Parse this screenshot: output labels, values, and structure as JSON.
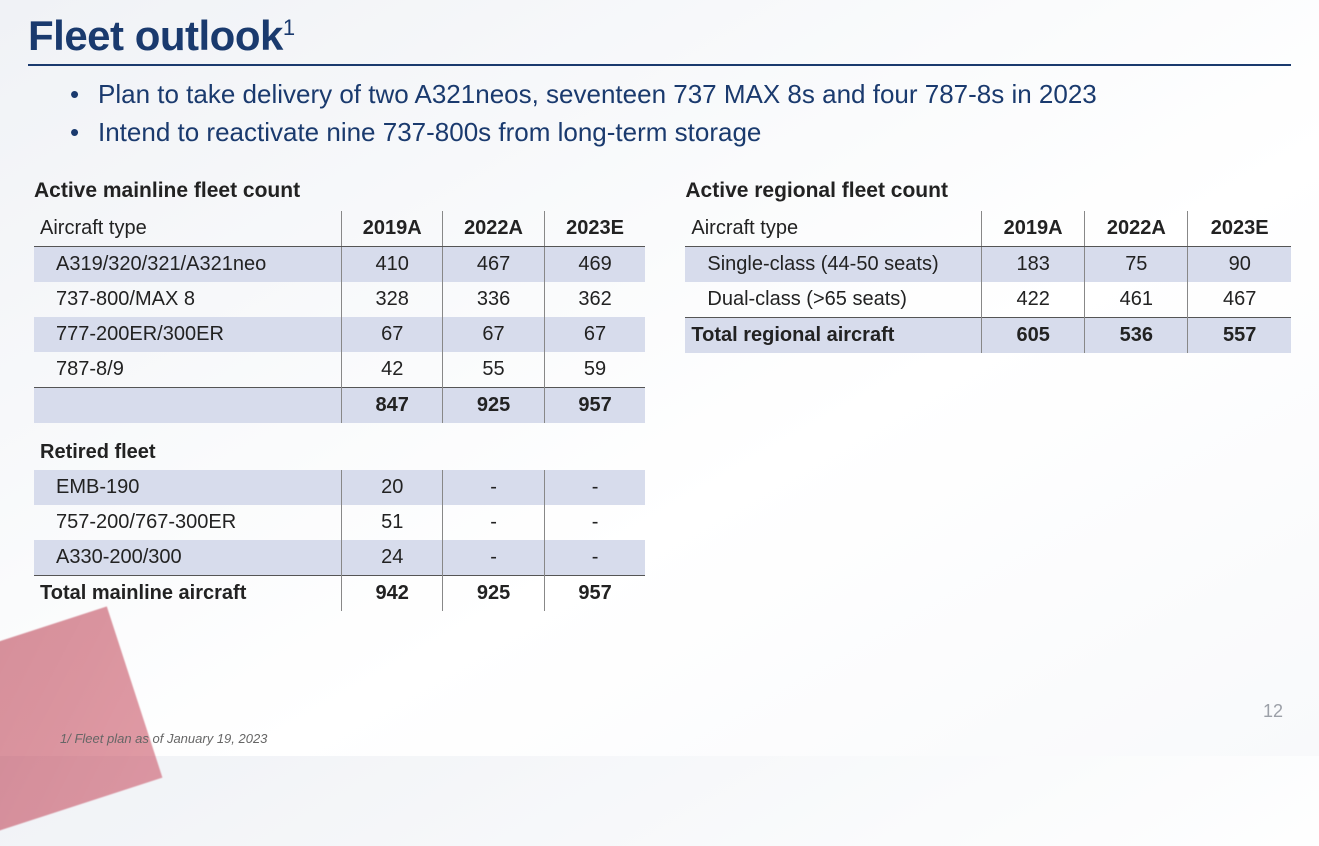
{
  "title": "Fleet outlook",
  "title_sup": "1",
  "bullets": [
    "Plan to take delivery of two A321neos, seventeen 737 MAX 8s and four 787-8s in 2023",
    "Intend to reactivate nine 737-800s from long-term storage"
  ],
  "colors": {
    "heading": "#1a3a6e",
    "rule": "#1a3a6e",
    "shade_row": "#d7dcec",
    "border": "#555555",
    "col_divider": "#888888",
    "pagenum": "#9ca0a8",
    "footnote": "#666666"
  },
  "mainline": {
    "caption": "Active mainline fleet count",
    "columns": [
      "Aircraft type",
      "2019A",
      "2022A",
      "2023E"
    ],
    "rows": [
      {
        "label": "A319/320/321/A321neo",
        "vals": [
          "410",
          "467",
          "469"
        ],
        "shade": true
      },
      {
        "label": "737-800/MAX 8",
        "vals": [
          "328",
          "336",
          "362"
        ],
        "shade": false
      },
      {
        "label": "777-200ER/300ER",
        "vals": [
          "67",
          "67",
          "67"
        ],
        "shade": true
      },
      {
        "label": "787-8/9",
        "vals": [
          "42",
          "55",
          "59"
        ],
        "shade": false
      }
    ],
    "subtotal": {
      "label": "",
      "vals": [
        "847",
        "925",
        "957"
      ]
    },
    "retired_caption": "Retired fleet",
    "retired_rows": [
      {
        "label": "EMB-190",
        "vals": [
          "20",
          "-",
          "-"
        ],
        "shade": true
      },
      {
        "label": "757-200/767-300ER",
        "vals": [
          "51",
          "-",
          "-"
        ],
        "shade": false
      },
      {
        "label": "A330-200/300",
        "vals": [
          "24",
          "-",
          "-"
        ],
        "shade": true
      }
    ],
    "total": {
      "label": "Total mainline aircraft",
      "vals": [
        "942",
        "925",
        "957"
      ]
    }
  },
  "regional": {
    "caption": "Active regional fleet count",
    "columns": [
      "Aircraft type",
      "2019A",
      "2022A",
      "2023E"
    ],
    "rows": [
      {
        "label": "Single-class (44-50 seats)",
        "vals": [
          "183",
          "75",
          "90"
        ],
        "shade": true
      },
      {
        "label": "Dual-class (>65 seats)",
        "vals": [
          "422",
          "461",
          "467"
        ],
        "shade": false
      }
    ],
    "total": {
      "label": "Total regional aircraft",
      "vals": [
        "605",
        "536",
        "557"
      ]
    }
  },
  "page_number": "12",
  "footnote": "1/ Fleet plan as of January 19, 2023"
}
